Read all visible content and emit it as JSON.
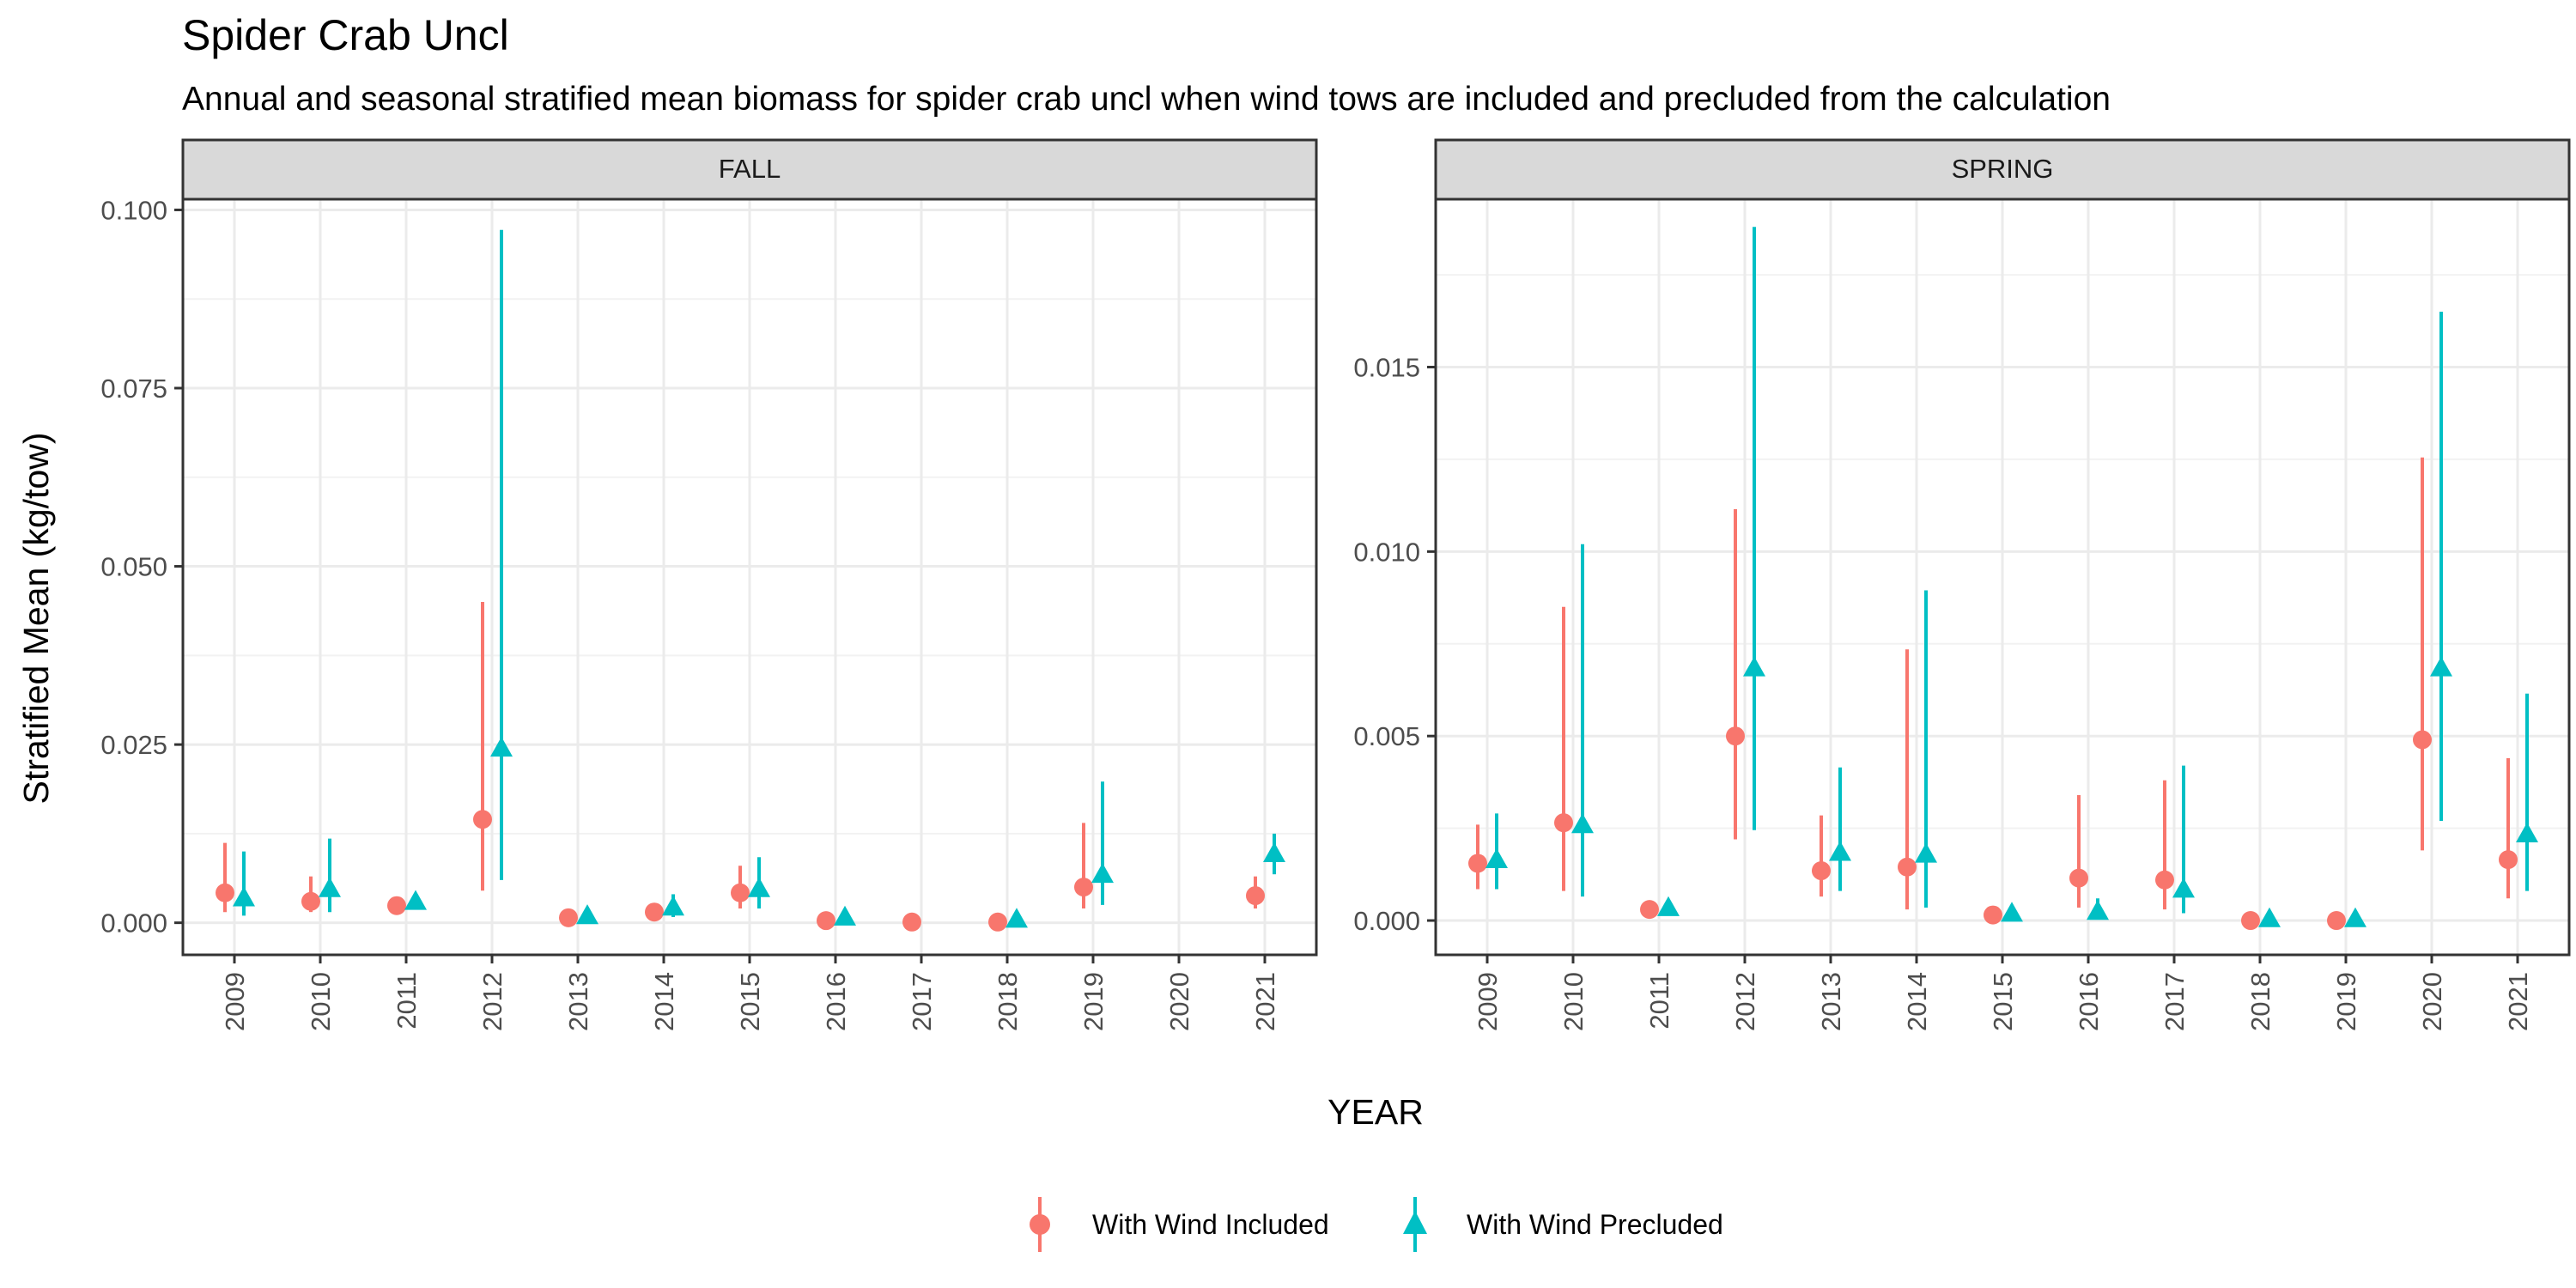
{
  "chart_data": {
    "type": "scatter",
    "title": "Spider Crab Uncl",
    "subtitle": "Annual and seasonal stratified mean biomass for spider crab uncl when wind tows are included and precluded from the calculation",
    "xlabel": "YEAR",
    "ylabel": "Stratified Mean (kg/tow)",
    "grid": true,
    "legend_position": "bottom",
    "categories": [
      "2009",
      "2010",
      "2011",
      "2012",
      "2013",
      "2014",
      "2015",
      "2016",
      "2017",
      "2018",
      "2019",
      "2020",
      "2021"
    ],
    "series_styles": [
      {
        "name": "With Wind Included",
        "shape": "circle",
        "color": "#F8766D"
      },
      {
        "name": "With Wind Precluded",
        "shape": "triangle",
        "color": "#00BFC4"
      }
    ],
    "panels": [
      {
        "name": "FALL",
        "ylim": [
          -0.0045,
          0.1015
        ],
        "yticks": [
          0.0,
          0.025,
          0.05,
          0.075,
          0.1
        ],
        "ytick_labels": [
          "0.000",
          "0.025",
          "0.050",
          "0.075",
          "0.100"
        ],
        "series": [
          {
            "name": "With Wind Included",
            "values": [
              0.0042,
              0.003,
              0.0024,
              0.0145,
              0.0007,
              0.0015,
              0.0042,
              0.0003,
              0.0001,
              0.0001,
              0.005,
              null,
              0.0038
            ],
            "lower": [
              0.0015,
              0.0015,
              0.0015,
              0.0045,
              0.0002,
              0.0007,
              0.002,
              0.0001,
              0.0,
              0.0,
              0.002,
              null,
              0.002
            ],
            "upper": [
              0.0112,
              0.0065,
              0.0035,
              0.045,
              0.0015,
              0.0025,
              0.008,
              0.001,
              0.0005,
              0.0005,
              0.014,
              null,
              0.0065
            ]
          },
          {
            "name": "With Wind Precluded",
            "values": [
              0.0035,
              0.0048,
              0.003,
              0.0245,
              0.001,
              0.0022,
              0.0048,
              0.0008,
              null,
              0.0005,
              0.0068,
              null,
              0.0097
            ],
            "lower": [
              0.001,
              0.0015,
              0.002,
              0.006,
              0.0003,
              0.0008,
              0.002,
              0.0002,
              null,
              0.0001,
              0.0025,
              null,
              0.0068
            ],
            "upper": [
              0.01,
              0.0118,
              0.004,
              0.0972,
              0.002,
              0.004,
              0.0092,
              0.0015,
              null,
              0.0012,
              0.0198,
              null,
              0.0125
            ]
          }
        ]
      },
      {
        "name": "SPRING",
        "ylim": [
          -0.00093,
          0.01955
        ],
        "yticks": [
          0.0,
          0.005,
          0.01,
          0.015
        ],
        "ytick_labels": [
          "0.000",
          "0.005",
          "0.010",
          "0.015"
        ],
        "series": [
          {
            "name": "With Wind Included",
            "values": [
              0.00155,
              0.00265,
              0.0003,
              0.005,
              0.00135,
              0.00145,
              0.00015,
              0.00115,
              0.0011,
              0.0,
              0.0,
              0.0049,
              0.00165
            ],
            "lower": [
              0.00085,
              0.0008,
              0.00015,
              0.0022,
              0.00065,
              0.0003,
              5e-05,
              0.00035,
              0.0003,
              0.0,
              0.0,
              0.0019,
              0.0006
            ],
            "upper": [
              0.0026,
              0.0085,
              0.00045,
              0.01115,
              0.00285,
              0.00735,
              0.0003,
              0.0034,
              0.0038,
              0.0,
              0.0,
              0.01255,
              0.0044
            ]
          },
          {
            "name": "With Wind Precluded",
            "values": [
              0.00165,
              0.0026,
              0.00035,
              0.00685,
              0.00185,
              0.0018,
              0.0002,
              0.00025,
              0.00085,
              5e-05,
              5e-05,
              0.00685,
              0.00235
            ],
            "lower": [
              0.00085,
              0.00065,
              0.0002,
              0.00245,
              0.0008,
              0.00035,
              5e-05,
              0.0001,
              0.0002,
              0.0,
              0.0,
              0.0027,
              0.0008
            ],
            "upper": [
              0.0029,
              0.0102,
              0.0005,
              0.0188,
              0.00415,
              0.00895,
              0.00035,
              0.0006,
              0.0042,
              0.0001,
              0.0001,
              0.0165,
              0.00615
            ]
          }
        ]
      }
    ]
  }
}
